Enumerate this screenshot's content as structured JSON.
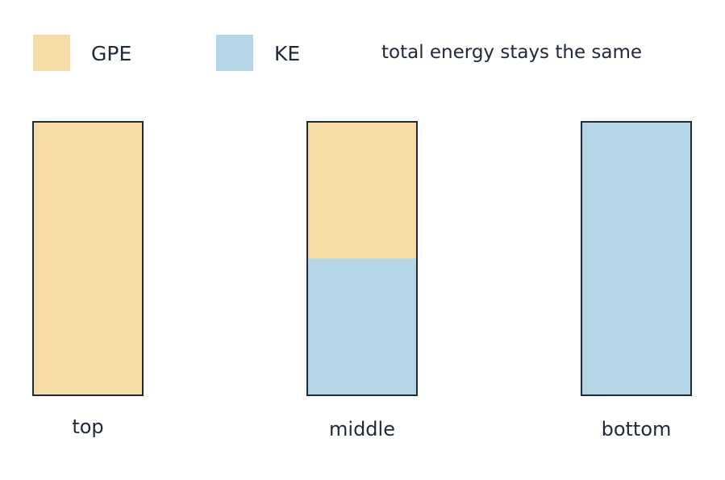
{
  "legend": {
    "items": [
      {
        "label": "GPE",
        "color": "#f5dca6"
      },
      {
        "label": "KE",
        "color": "#b3d5e6"
      }
    ],
    "note": "total energy stays the same"
  },
  "chart_data": {
    "type": "bar",
    "stacked": true,
    "categories": [
      "top",
      "middle",
      "bottom"
    ],
    "series": [
      {
        "name": "GPE",
        "values": [
          1.0,
          0.5,
          0.0
        ]
      },
      {
        "name": "KE",
        "values": [
          0.0,
          0.5,
          1.0
        ]
      }
    ],
    "ylim": [
      0,
      1
    ],
    "grid": false,
    "legend_position": "top",
    "colors": {
      "GPE": "#f5dca6",
      "KE": "#b3d5e6",
      "outline": "#1f2937"
    },
    "title": "",
    "xlabel": "",
    "ylabel": ""
  }
}
